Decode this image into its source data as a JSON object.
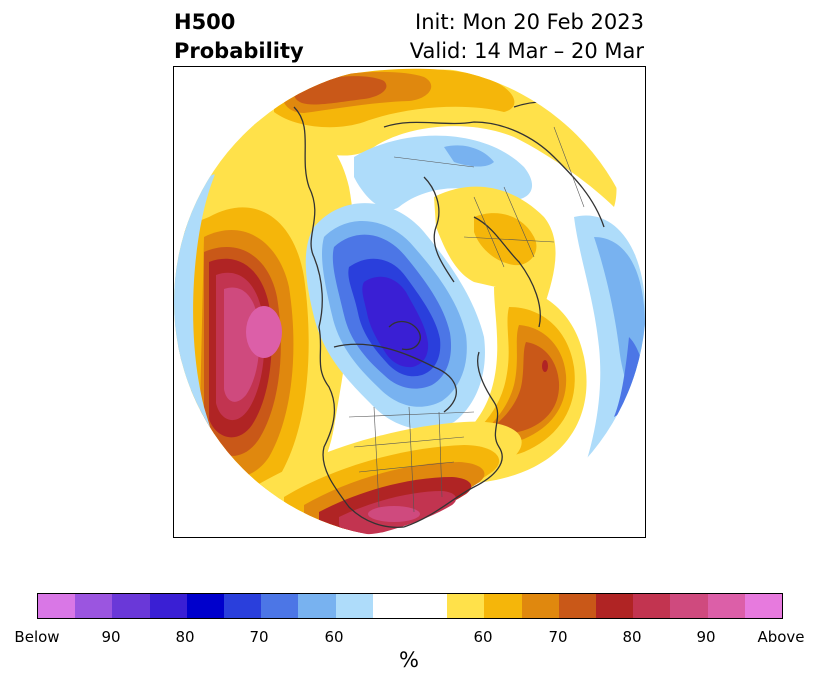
{
  "title": {
    "left_line1": "H500",
    "left_line2": "Probability",
    "right_line1": "Init: Mon 20 Feb 2023",
    "right_line2": "Valid: 14 Mar – 20 Mar"
  },
  "colorbar": {
    "label": "%",
    "ticks": [
      "Below",
      "90",
      "80",
      "70",
      "60",
      "60",
      "70",
      "80",
      "90",
      "Above"
    ],
    "colors": [
      "#d977e6",
      "#9b55e0",
      "#6a38d8",
      "#3a1fd4",
      "#0000cc",
      "#2a3fdc",
      "#4c76e6",
      "#78b2f0",
      "#aedcfa",
      "#ffffff",
      "#ffe14a",
      "#f5b60a",
      "#e0880e",
      "#c95818",
      "#b02424",
      "#c23450",
      "#cf4a7e",
      "#dc5fa8",
      "#e77ade"
    ]
  },
  "map": {
    "projection": "north polar stereographic",
    "colors": {
      "below_90": "#9b55e0",
      "below_80": "#3a1fd4",
      "below_75": "#2a3fdc",
      "below_70": "#4c76e6",
      "below_65": "#78b2f0",
      "below_60": "#aedcfa",
      "neutral": "#ffffff",
      "above_55": "#ffe14a",
      "above_60": "#f5b60a",
      "above_65": "#e0880e",
      "above_70": "#c95818",
      "above_75": "#b02424",
      "above_80": "#c23450",
      "above_85": "#cf4a7e",
      "above_90": "#dc5fa8",
      "coastline": "#333333"
    }
  }
}
